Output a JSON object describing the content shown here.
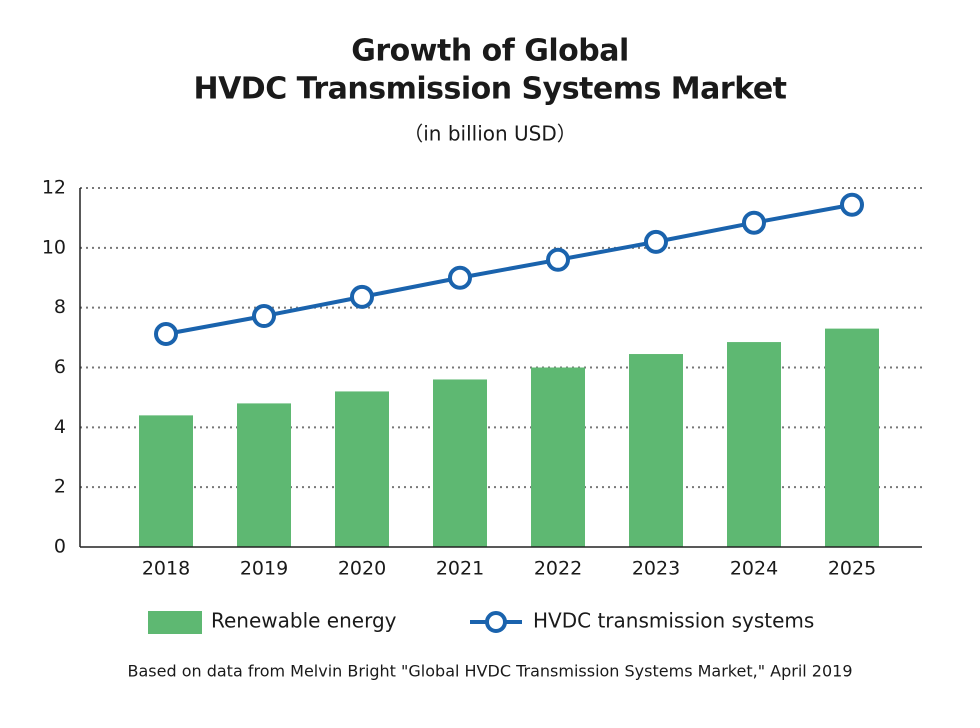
{
  "chart_data": {
    "type": "bar-line",
    "title": [
      "Growth of Global",
      "HVDC Transmission Systems Market"
    ],
    "subtitle": "（in billion USD）",
    "categories": [
      "2018",
      "2019",
      "2020",
      "2021",
      "2022",
      "2023",
      "2024",
      "2025"
    ],
    "series": [
      {
        "name": "Renewable energy",
        "type": "bar",
        "color": "#5eb872",
        "values": [
          4.4,
          4.8,
          5.2,
          5.6,
          6.0,
          6.45,
          6.85,
          7.3
        ]
      },
      {
        "name": "HVDC transmission systems",
        "type": "line",
        "color": "#1a63ad",
        "values": [
          7.12,
          7.72,
          8.36,
          9.0,
          9.6,
          10.2,
          10.84,
          11.44
        ]
      }
    ],
    "ylim": [
      0,
      12
    ],
    "yticks": [
      0,
      2,
      4,
      6,
      8,
      10,
      12
    ],
    "grid": true,
    "legend": "bottom",
    "source": "Based on data from Melvin Bright \"Global HVDC Transmission Systems Market,\" April 2019"
  }
}
